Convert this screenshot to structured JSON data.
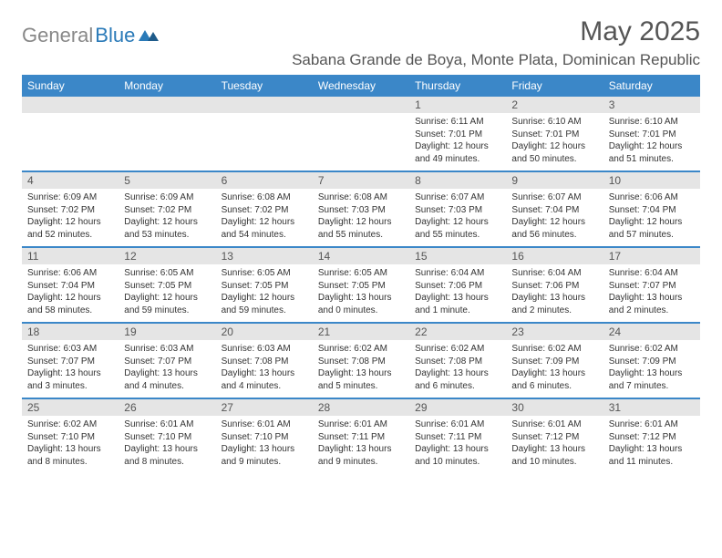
{
  "logo": {
    "text_gray": "General",
    "text_blue": "Blue"
  },
  "title": "May 2025",
  "location": "Sabana Grande de Boya, Monte Plata, Dominican Republic",
  "colors": {
    "header_bg": "#3b87c8",
    "daynum_bg": "#e5e5e5",
    "week_border": "#3b87c8",
    "logo_gray": "#888888",
    "logo_blue": "#2a7ab8",
    "text_muted": "#555555"
  },
  "weekdays": [
    "Sunday",
    "Monday",
    "Tuesday",
    "Wednesday",
    "Thursday",
    "Friday",
    "Saturday"
  ],
  "weeks": [
    [
      {
        "n": "",
        "lines": [
          "",
          "",
          "",
          ""
        ]
      },
      {
        "n": "",
        "lines": [
          "",
          "",
          "",
          ""
        ]
      },
      {
        "n": "",
        "lines": [
          "",
          "",
          "",
          ""
        ]
      },
      {
        "n": "",
        "lines": [
          "",
          "",
          "",
          ""
        ]
      },
      {
        "n": "1",
        "lines": [
          "Sunrise: 6:11 AM",
          "Sunset: 7:01 PM",
          "Daylight: 12 hours",
          "and 49 minutes."
        ]
      },
      {
        "n": "2",
        "lines": [
          "Sunrise: 6:10 AM",
          "Sunset: 7:01 PM",
          "Daylight: 12 hours",
          "and 50 minutes."
        ]
      },
      {
        "n": "3",
        "lines": [
          "Sunrise: 6:10 AM",
          "Sunset: 7:01 PM",
          "Daylight: 12 hours",
          "and 51 minutes."
        ]
      }
    ],
    [
      {
        "n": "4",
        "lines": [
          "Sunrise: 6:09 AM",
          "Sunset: 7:02 PM",
          "Daylight: 12 hours",
          "and 52 minutes."
        ]
      },
      {
        "n": "5",
        "lines": [
          "Sunrise: 6:09 AM",
          "Sunset: 7:02 PM",
          "Daylight: 12 hours",
          "and 53 minutes."
        ]
      },
      {
        "n": "6",
        "lines": [
          "Sunrise: 6:08 AM",
          "Sunset: 7:02 PM",
          "Daylight: 12 hours",
          "and 54 minutes."
        ]
      },
      {
        "n": "7",
        "lines": [
          "Sunrise: 6:08 AM",
          "Sunset: 7:03 PM",
          "Daylight: 12 hours",
          "and 55 minutes."
        ]
      },
      {
        "n": "8",
        "lines": [
          "Sunrise: 6:07 AM",
          "Sunset: 7:03 PM",
          "Daylight: 12 hours",
          "and 55 minutes."
        ]
      },
      {
        "n": "9",
        "lines": [
          "Sunrise: 6:07 AM",
          "Sunset: 7:04 PM",
          "Daylight: 12 hours",
          "and 56 minutes."
        ]
      },
      {
        "n": "10",
        "lines": [
          "Sunrise: 6:06 AM",
          "Sunset: 7:04 PM",
          "Daylight: 12 hours",
          "and 57 minutes."
        ]
      }
    ],
    [
      {
        "n": "11",
        "lines": [
          "Sunrise: 6:06 AM",
          "Sunset: 7:04 PM",
          "Daylight: 12 hours",
          "and 58 minutes."
        ]
      },
      {
        "n": "12",
        "lines": [
          "Sunrise: 6:05 AM",
          "Sunset: 7:05 PM",
          "Daylight: 12 hours",
          "and 59 minutes."
        ]
      },
      {
        "n": "13",
        "lines": [
          "Sunrise: 6:05 AM",
          "Sunset: 7:05 PM",
          "Daylight: 12 hours",
          "and 59 minutes."
        ]
      },
      {
        "n": "14",
        "lines": [
          "Sunrise: 6:05 AM",
          "Sunset: 7:05 PM",
          "Daylight: 13 hours",
          "and 0 minutes."
        ]
      },
      {
        "n": "15",
        "lines": [
          "Sunrise: 6:04 AM",
          "Sunset: 7:06 PM",
          "Daylight: 13 hours",
          "and 1 minute."
        ]
      },
      {
        "n": "16",
        "lines": [
          "Sunrise: 6:04 AM",
          "Sunset: 7:06 PM",
          "Daylight: 13 hours",
          "and 2 minutes."
        ]
      },
      {
        "n": "17",
        "lines": [
          "Sunrise: 6:04 AM",
          "Sunset: 7:07 PM",
          "Daylight: 13 hours",
          "and 2 minutes."
        ]
      }
    ],
    [
      {
        "n": "18",
        "lines": [
          "Sunrise: 6:03 AM",
          "Sunset: 7:07 PM",
          "Daylight: 13 hours",
          "and 3 minutes."
        ]
      },
      {
        "n": "19",
        "lines": [
          "Sunrise: 6:03 AM",
          "Sunset: 7:07 PM",
          "Daylight: 13 hours",
          "and 4 minutes."
        ]
      },
      {
        "n": "20",
        "lines": [
          "Sunrise: 6:03 AM",
          "Sunset: 7:08 PM",
          "Daylight: 13 hours",
          "and 4 minutes."
        ]
      },
      {
        "n": "21",
        "lines": [
          "Sunrise: 6:02 AM",
          "Sunset: 7:08 PM",
          "Daylight: 13 hours",
          "and 5 minutes."
        ]
      },
      {
        "n": "22",
        "lines": [
          "Sunrise: 6:02 AM",
          "Sunset: 7:08 PM",
          "Daylight: 13 hours",
          "and 6 minutes."
        ]
      },
      {
        "n": "23",
        "lines": [
          "Sunrise: 6:02 AM",
          "Sunset: 7:09 PM",
          "Daylight: 13 hours",
          "and 6 minutes."
        ]
      },
      {
        "n": "24",
        "lines": [
          "Sunrise: 6:02 AM",
          "Sunset: 7:09 PM",
          "Daylight: 13 hours",
          "and 7 minutes."
        ]
      }
    ],
    [
      {
        "n": "25",
        "lines": [
          "Sunrise: 6:02 AM",
          "Sunset: 7:10 PM",
          "Daylight: 13 hours",
          "and 8 minutes."
        ]
      },
      {
        "n": "26",
        "lines": [
          "Sunrise: 6:01 AM",
          "Sunset: 7:10 PM",
          "Daylight: 13 hours",
          "and 8 minutes."
        ]
      },
      {
        "n": "27",
        "lines": [
          "Sunrise: 6:01 AM",
          "Sunset: 7:10 PM",
          "Daylight: 13 hours",
          "and 9 minutes."
        ]
      },
      {
        "n": "28",
        "lines": [
          "Sunrise: 6:01 AM",
          "Sunset: 7:11 PM",
          "Daylight: 13 hours",
          "and 9 minutes."
        ]
      },
      {
        "n": "29",
        "lines": [
          "Sunrise: 6:01 AM",
          "Sunset: 7:11 PM",
          "Daylight: 13 hours",
          "and 10 minutes."
        ]
      },
      {
        "n": "30",
        "lines": [
          "Sunrise: 6:01 AM",
          "Sunset: 7:12 PM",
          "Daylight: 13 hours",
          "and 10 minutes."
        ]
      },
      {
        "n": "31",
        "lines": [
          "Sunrise: 6:01 AM",
          "Sunset: 7:12 PM",
          "Daylight: 13 hours",
          "and 11 minutes."
        ]
      }
    ]
  ]
}
